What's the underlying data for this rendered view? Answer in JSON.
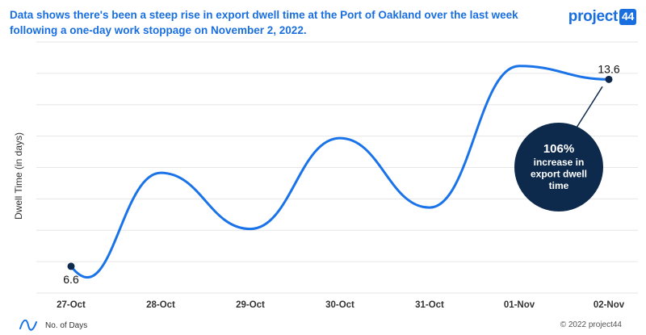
{
  "header": {
    "title": "Data shows there's been a steep rise in export dwell time at the Port of Oakland over the last week following a one-day work stoppage on November 2, 2022.",
    "logo_name": "project",
    "logo_number": "44"
  },
  "chart_data": {
    "type": "line",
    "title": "Data shows there's been a steep rise in export dwell time at the Port of Oakland over the last week following a one-day work stoppage on November 2, 2022.",
    "ylabel": "Dwell Time (in days)",
    "xlabel": "",
    "categories": [
      "27-Oct",
      "28-Oct",
      "29-Oct",
      "30-Oct",
      "31-Oct",
      "01-Nov",
      "02-Nov"
    ],
    "series": [
      {
        "name": "No. of Days",
        "values": [
          6.6,
          10.1,
          8.0,
          11.4,
          8.8,
          14.1,
          13.6
        ],
        "color": "#1a73e8"
      }
    ],
    "ylim": [
      5.6,
      15.0
    ],
    "grid": true,
    "legend_position": "bottom-left",
    "point_labels": [
      {
        "index": 0,
        "text": "6.6"
      },
      {
        "index": 6,
        "text": "13.6"
      }
    ],
    "annotation": {
      "text_lines": [
        "106%",
        "increase in",
        "export dwell",
        "time"
      ],
      "background": "#0d2a4d",
      "text_color": "#ffffff"
    },
    "gridline_color": "#e6e6e6",
    "marker_color": "#0d2a4d"
  },
  "footer": {
    "copyright": "© 2022 project44"
  }
}
